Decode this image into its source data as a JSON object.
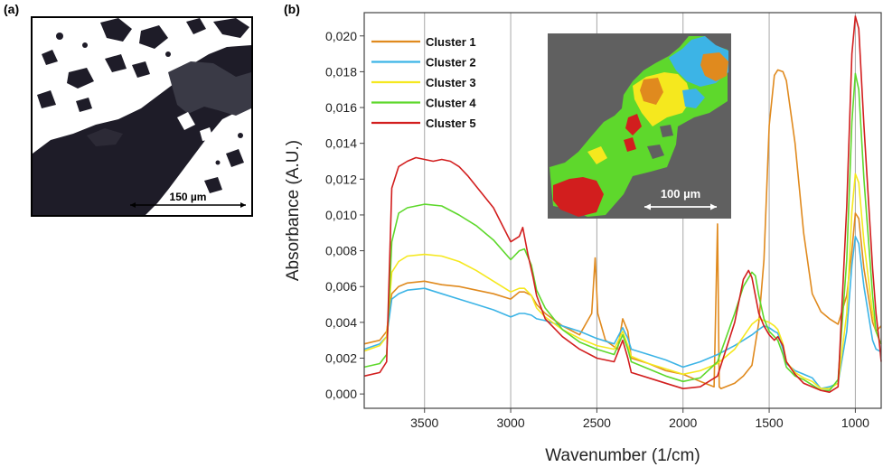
{
  "panels": {
    "a": {
      "label": "(a)",
      "scale_bar_text": "150 µm"
    },
    "b": {
      "label": "(b)",
      "inset_scale_bar_text": "100 µm"
    }
  },
  "colors": {
    "cluster1": "#e08a1e",
    "cluster2": "#3cb4e6",
    "cluster3": "#f5e81e",
    "cluster4": "#5ed82c",
    "cluster5": "#d21e1e",
    "inset_background": "#606060"
  },
  "chart_data": {
    "type": "line",
    "xlabel": "Wavenumber (1/cm)",
    "ylabel": "Absorbance (A.U.)",
    "xlim": [
      3850,
      850
    ],
    "x_reversed": true,
    "ylim": [
      -0.0008,
      0.0213
    ],
    "x_ticks": [
      {
        "value": 3500,
        "label": "3500"
      },
      {
        "value": 3000,
        "label": "3000"
      },
      {
        "value": 2500,
        "label": "2500"
      },
      {
        "value": 2000,
        "label": "2000"
      },
      {
        "value": 1500,
        "label": "1500"
      },
      {
        "value": 1000,
        "label": "1000"
      }
    ],
    "y_ticks": [
      {
        "value": 0.0,
        "label": "0,000"
      },
      {
        "value": 0.002,
        "label": "0,002"
      },
      {
        "value": 0.004,
        "label": "0,004"
      },
      {
        "value": 0.006,
        "label": "0,006"
      },
      {
        "value": 0.008,
        "label": "0,008"
      },
      {
        "value": 0.01,
        "label": "0,010"
      },
      {
        "value": 0.012,
        "label": "0,012"
      },
      {
        "value": 0.014,
        "label": "0,014"
      },
      {
        "value": 0.016,
        "label": "0,016"
      },
      {
        "value": 0.018,
        "label": "0,018"
      },
      {
        "value": 0.02,
        "label": "0,020"
      }
    ],
    "grid": "vertical lines at x ticks",
    "legend_position": "top-left",
    "series": [
      {
        "name": "Cluster 1",
        "color": "#e08a1e",
        "x": [
          3850,
          3760,
          3720,
          3690,
          3650,
          3600,
          3500,
          3400,
          3300,
          3200,
          3100,
          3000,
          2950,
          2920,
          2880,
          2850,
          2800,
          2700,
          2600,
          2530,
          2510,
          2495,
          2450,
          2380,
          2350,
          2320,
          2300,
          2200,
          2100,
          2000,
          1900,
          1820,
          1800,
          1790,
          1780,
          1700,
          1650,
          1600,
          1560,
          1530,
          1500,
          1470,
          1450,
          1420,
          1400,
          1350,
          1300,
          1250,
          1200,
          1150,
          1100,
          1050,
          1020,
          1000,
          980,
          950,
          900,
          880,
          860,
          850
        ],
        "y": [
          0.0028,
          0.003,
          0.0035,
          0.0056,
          0.006,
          0.0062,
          0.0063,
          0.0061,
          0.006,
          0.0058,
          0.0056,
          0.0053,
          0.0057,
          0.0057,
          0.0055,
          0.005,
          0.0045,
          0.0038,
          0.0033,
          0.0045,
          0.0076,
          0.0045,
          0.003,
          0.0025,
          0.0042,
          0.0035,
          0.002,
          0.0017,
          0.0013,
          0.0011,
          0.0007,
          0.0004,
          0.0095,
          0.0004,
          0.0003,
          0.0006,
          0.001,
          0.0016,
          0.004,
          0.0075,
          0.015,
          0.0178,
          0.0181,
          0.018,
          0.0175,
          0.014,
          0.009,
          0.0056,
          0.0046,
          0.0042,
          0.0039,
          0.0055,
          0.008,
          0.0101,
          0.0098,
          0.007,
          0.004,
          0.0035,
          0.0037,
          0.0038
        ]
      },
      {
        "name": "Cluster 2",
        "color": "#3cb4e6",
        "x": [
          3850,
          3760,
          3720,
          3690,
          3650,
          3600,
          3500,
          3400,
          3300,
          3200,
          3100,
          3000,
          2950,
          2920,
          2880,
          2850,
          2800,
          2700,
          2600,
          2500,
          2400,
          2350,
          2320,
          2300,
          2200,
          2100,
          2000,
          1900,
          1800,
          1700,
          1650,
          1600,
          1560,
          1530,
          1500,
          1470,
          1450,
          1420,
          1400,
          1350,
          1300,
          1250,
          1200,
          1150,
          1100,
          1050,
          1020,
          1000,
          980,
          950,
          900,
          880,
          860,
          850
        ],
        "y": [
          0.0025,
          0.0028,
          0.0032,
          0.0053,
          0.0056,
          0.0058,
          0.0059,
          0.0056,
          0.0053,
          0.005,
          0.0047,
          0.0043,
          0.0045,
          0.0045,
          0.0044,
          0.0042,
          0.0041,
          0.0038,
          0.0035,
          0.0031,
          0.0028,
          0.0037,
          0.0031,
          0.0025,
          0.0022,
          0.0019,
          0.0015,
          0.0018,
          0.0022,
          0.0027,
          0.003,
          0.0033,
          0.0036,
          0.0038,
          0.0037,
          0.0035,
          0.0034,
          0.0025,
          0.0017,
          0.0013,
          0.0011,
          0.0009,
          0.0003,
          0.0004,
          0.0006,
          0.0035,
          0.0072,
          0.0088,
          0.0084,
          0.006,
          0.003,
          0.0025,
          0.0024,
          0.0023
        ]
      },
      {
        "name": "Cluster 3",
        "color": "#f5e81e",
        "x": [
          3850,
          3760,
          3720,
          3690,
          3650,
          3600,
          3500,
          3400,
          3300,
          3200,
          3100,
          3000,
          2950,
          2920,
          2880,
          2850,
          2800,
          2700,
          2600,
          2500,
          2400,
          2350,
          2320,
          2300,
          2200,
          2100,
          2000,
          1900,
          1800,
          1700,
          1650,
          1600,
          1560,
          1530,
          1500,
          1470,
          1450,
          1420,
          1400,
          1350,
          1300,
          1250,
          1200,
          1150,
          1100,
          1050,
          1020,
          1000,
          980,
          950,
          900,
          880,
          860,
          850
        ],
        "y": [
          0.0024,
          0.0027,
          0.0032,
          0.0068,
          0.0074,
          0.0077,
          0.0078,
          0.0077,
          0.0074,
          0.0069,
          0.0063,
          0.0057,
          0.0059,
          0.0059,
          0.0055,
          0.0048,
          0.0043,
          0.0036,
          0.0031,
          0.0027,
          0.0025,
          0.0035,
          0.0027,
          0.0021,
          0.0017,
          0.0014,
          0.0011,
          0.0013,
          0.0017,
          0.0025,
          0.0032,
          0.0039,
          0.0042,
          0.0041,
          0.004,
          0.0038,
          0.0036,
          0.0028,
          0.0018,
          0.0012,
          0.0009,
          0.0007,
          0.0003,
          0.0003,
          0.0006,
          0.0045,
          0.0102,
          0.0123,
          0.0118,
          0.0085,
          0.0045,
          0.0035,
          0.003,
          0.0028
        ]
      },
      {
        "name": "Cluster 4",
        "color": "#5ed82c",
        "x": [
          3850,
          3760,
          3720,
          3690,
          3650,
          3600,
          3500,
          3400,
          3300,
          3200,
          3100,
          3000,
          2950,
          2920,
          2880,
          2850,
          2800,
          2700,
          2600,
          2500,
          2400,
          2350,
          2320,
          2300,
          2200,
          2100,
          2000,
          1900,
          1800,
          1700,
          1650,
          1600,
          1580,
          1560,
          1530,
          1500,
          1470,
          1450,
          1420,
          1400,
          1350,
          1300,
          1250,
          1200,
          1150,
          1100,
          1050,
          1020,
          1000,
          980,
          950,
          900,
          880,
          860,
          850
        ],
        "y": [
          0.0015,
          0.0017,
          0.0022,
          0.0085,
          0.0101,
          0.0104,
          0.0106,
          0.0105,
          0.01,
          0.0094,
          0.0086,
          0.0075,
          0.008,
          0.0081,
          0.0072,
          0.0058,
          0.0048,
          0.0036,
          0.0029,
          0.0025,
          0.0022,
          0.0033,
          0.0025,
          0.0018,
          0.0014,
          0.001,
          0.0007,
          0.0009,
          0.0018,
          0.0045,
          0.006,
          0.0068,
          0.0066,
          0.0055,
          0.0042,
          0.0035,
          0.0032,
          0.003,
          0.0022,
          0.0015,
          0.001,
          0.0008,
          0.0005,
          0.0002,
          0.0002,
          0.0008,
          0.0075,
          0.0152,
          0.0179,
          0.017,
          0.012,
          0.0055,
          0.0035,
          0.003,
          0.0028
        ]
      },
      {
        "name": "Cluster 5",
        "color": "#d21e1e",
        "x": [
          3850,
          3760,
          3720,
          3690,
          3650,
          3600,
          3550,
          3500,
          3450,
          3400,
          3350,
          3300,
          3250,
          3200,
          3100,
          3000,
          2950,
          2930,
          2900,
          2870,
          2850,
          2800,
          2700,
          2600,
          2500,
          2400,
          2350,
          2320,
          2300,
          2200,
          2100,
          2000,
          1900,
          1800,
          1700,
          1650,
          1620,
          1600,
          1580,
          1560,
          1530,
          1500,
          1470,
          1450,
          1420,
          1400,
          1350,
          1300,
          1250,
          1200,
          1150,
          1100,
          1050,
          1020,
          1000,
          980,
          950,
          900,
          880,
          860,
          850
        ],
        "y": [
          0.001,
          0.0012,
          0.0018,
          0.0115,
          0.0127,
          0.013,
          0.0132,
          0.0131,
          0.013,
          0.0131,
          0.013,
          0.0127,
          0.0122,
          0.0116,
          0.0104,
          0.0085,
          0.0088,
          0.0093,
          0.0078,
          0.0065,
          0.0055,
          0.0042,
          0.0032,
          0.0025,
          0.002,
          0.0018,
          0.003,
          0.002,
          0.0012,
          0.0009,
          0.0006,
          0.0003,
          0.0004,
          0.001,
          0.004,
          0.0064,
          0.0069,
          0.0065,
          0.0055,
          0.0045,
          0.0038,
          0.0033,
          0.003,
          0.0032,
          0.0027,
          0.0018,
          0.0011,
          0.0006,
          0.0004,
          0.0002,
          0.0001,
          0.0004,
          0.0105,
          0.019,
          0.0211,
          0.0204,
          0.015,
          0.007,
          0.0045,
          0.0028,
          0.0018
        ]
      }
    ]
  }
}
